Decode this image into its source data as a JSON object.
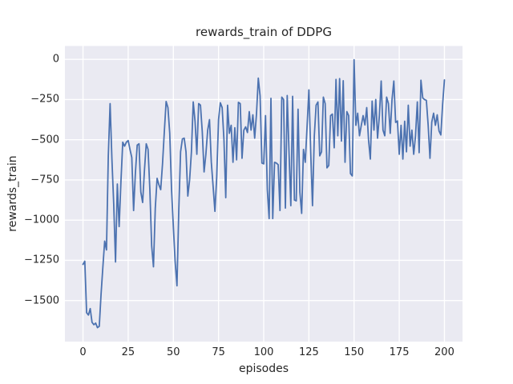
{
  "chart_data": {
    "type": "line",
    "title": "rewards_train of DDPG",
    "xlabel": "episodes",
    "ylabel": "rewards_train",
    "x_tick_values": [
      0,
      25,
      50,
      75,
      100,
      125,
      150,
      175,
      200
    ],
    "x_tick_labels": [
      "0",
      "25",
      "50",
      "75",
      "100",
      "125",
      "150",
      "175",
      "200"
    ],
    "y_tick_values": [
      0,
      -250,
      -500,
      -750,
      -1000,
      -1250,
      -1500
    ],
    "y_tick_labels": [
      "0",
      "−250",
      "−500",
      "−750",
      "−1000",
      "−1250",
      "−1500"
    ],
    "xlim": [
      -10,
      210
    ],
    "ylim": [
      -1755,
      83
    ],
    "grid": true,
    "legend_position": "none",
    "style": {
      "figure_background": "#ffffff",
      "plot_background": "#eaeaf2",
      "grid_color": "#ffffff",
      "line_color": "#4c72b0",
      "text_color": "#262626"
    },
    "series": [
      {
        "name": "rewards_train",
        "color": "#4c72b0",
        "x_start": 0,
        "x_step": 1,
        "values": [
          -1275,
          -1255,
          -1575,
          -1590,
          -1550,
          -1635,
          -1650,
          -1640,
          -1668,
          -1660,
          -1460,
          -1290,
          -1130,
          -1185,
          -600,
          -275,
          -620,
          -900,
          -1260,
          -775,
          -1040,
          -760,
          -515,
          -540,
          -515,
          -505,
          -560,
          -610,
          -940,
          -705,
          -533,
          -525,
          -825,
          -890,
          -690,
          -525,
          -560,
          -810,
          -1160,
          -1290,
          -925,
          -740,
          -780,
          -810,
          -650,
          -450,
          -262,
          -300,
          -460,
          -810,
          -1040,
          -1260,
          -1408,
          -940,
          -575,
          -495,
          -490,
          -575,
          -850,
          -750,
          -575,
          -265,
          -385,
          -590,
          -275,
          -285,
          -450,
          -700,
          -590,
          -440,
          -375,
          -640,
          -790,
          -945,
          -730,
          -375,
          -270,
          -300,
          -500,
          -860,
          -285,
          -460,
          -410,
          -640,
          -425,
          -625,
          -267,
          -275,
          -615,
          -440,
          -420,
          -455,
          -325,
          -440,
          -345,
          -490,
          -340,
          -117,
          -228,
          -645,
          -650,
          -350,
          -810,
          -990,
          -242,
          -990,
          -640,
          -645,
          -655,
          -940,
          -235,
          -250,
          -925,
          -225,
          -575,
          -910,
          -230,
          -875,
          -880,
          -310,
          -825,
          -958,
          -560,
          -640,
          -415,
          -190,
          -575,
          -910,
          -475,
          -285,
          -265,
          -600,
          -575,
          -235,
          -275,
          -675,
          -660,
          -350,
          -340,
          -550,
          -125,
          -475,
          -120,
          -508,
          -133,
          -640,
          -325,
          -350,
          -710,
          -725,
          -2,
          -410,
          -335,
          -475,
          -410,
          -350,
          -408,
          -300,
          -500,
          -620,
          -260,
          -440,
          -250,
          -490,
          -350,
          -135,
          -440,
          -475,
          -235,
          -275,
          -460,
          -250,
          -135,
          -392,
          -383,
          -590,
          -410,
          -620,
          -385,
          -575,
          -285,
          -540,
          -440,
          -590,
          -475,
          -265,
          -580,
          -130,
          -240,
          -250,
          -255,
          -410,
          -615,
          -390,
          -335,
          -410,
          -345,
          -445,
          -470,
          -280,
          -128
        ]
      }
    ]
  }
}
